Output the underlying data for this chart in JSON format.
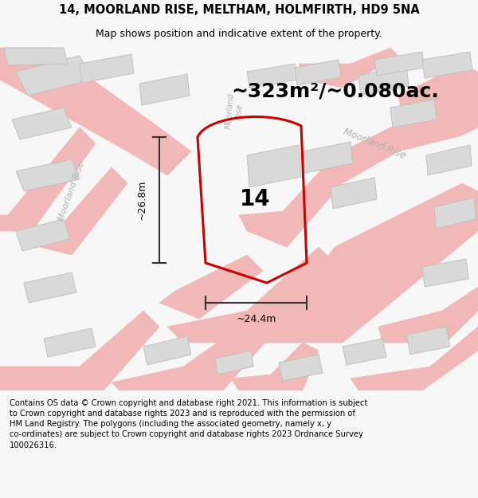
{
  "title_line1": "14, MOORLAND RISE, MELTHAM, HOLMFIRTH, HD9 5NA",
  "title_line2": "Map shows position and indicative extent of the property.",
  "area_text": "~323m²/~0.080ac.",
  "property_number": "14",
  "dim_vertical": "~26.8m",
  "dim_horizontal": "~24.4m",
  "footer_text": "Contains OS data © Crown copyright and database right 2021. This information is subject to Crown copyright and database rights 2023 and is reproduced with the permission of HM Land Registry. The polygons (including the associated geometry, namely x, y co-ordinates) are subject to Crown copyright and database rights 2023 Ordnance Survey 100026316.",
  "bg_color": "#f7f7f7",
  "map_bg": "#eeecec",
  "road_color": "#f2b8b8",
  "road_edge": "#e8a0a0",
  "building_color": "#d9d9d9",
  "building_edge": "#c0c0c0",
  "property_outline": "#cc0000",
  "road_label_color": "#b0b0b0",
  "dim_color": "#333333",
  "title_fontsize": 10.5,
  "subtitle_fontsize": 9,
  "area_fontsize": 18,
  "number_fontsize": 20,
  "dim_fontsize": 9,
  "road_label_fontsize": 8,
  "footer_fontsize": 7.2
}
